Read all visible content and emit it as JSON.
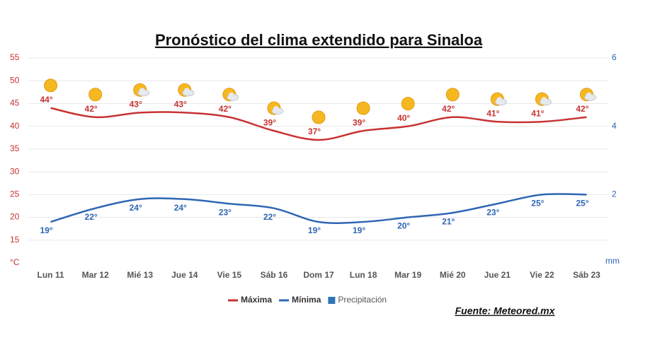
{
  "chart_data": {
    "type": "line",
    "title": "Pronóstico del clima extendido para Sinaloa",
    "source": "Fuente: Meteored.mx",
    "categories": [
      "Lun 11",
      "Mar 12",
      "Mié 13",
      "Jue 14",
      "Vie 15",
      "Sáb 16",
      "Dom 17",
      "Lun 18",
      "Mar 19",
      "Mié 20",
      "Jue 21",
      "Vie 22",
      "Sáb 23"
    ],
    "series": [
      {
        "name": "Máxima",
        "color": "#c83232",
        "values": [
          44,
          42,
          43,
          43,
          42,
          39,
          37,
          39,
          40,
          42,
          41,
          41,
          42
        ],
        "value_labels": [
          "44°",
          "42°",
          "43°",
          "43°",
          "42°",
          "39°",
          "37°",
          "39°",
          "40°",
          "42°",
          "41°",
          "41°",
          "42°"
        ]
      },
      {
        "name": "Mínima",
        "color": "#2f66b3",
        "values": [
          19,
          22,
          24,
          24,
          23,
          22,
          19,
          19,
          20,
          21,
          23,
          25,
          25
        ],
        "value_labels": [
          "19°",
          "22°",
          "24°",
          "24°",
          "23°",
          "22°",
          "19°",
          "19°",
          "20°",
          "21°",
          "23°",
          "25°",
          "25°"
        ]
      },
      {
        "name": "Precipitación",
        "color": "#2e73b8",
        "axis": "y2",
        "values": [
          null,
          null,
          null,
          null,
          null,
          null,
          null,
          null,
          null,
          null,
          null,
          null,
          null
        ]
      }
    ],
    "ylim": [
      10,
      55
    ],
    "yticks": [
      {
        "value": 10,
        "label": "°C"
      },
      15,
      20,
      25,
      30,
      35,
      40,
      45,
      50,
      55
    ],
    "y2lim": [
      0,
      6
    ],
    "y2ticks": [
      {
        "value": 0,
        "label": "mm"
      },
      2,
      4,
      6
    ],
    "grid": true
  }
}
